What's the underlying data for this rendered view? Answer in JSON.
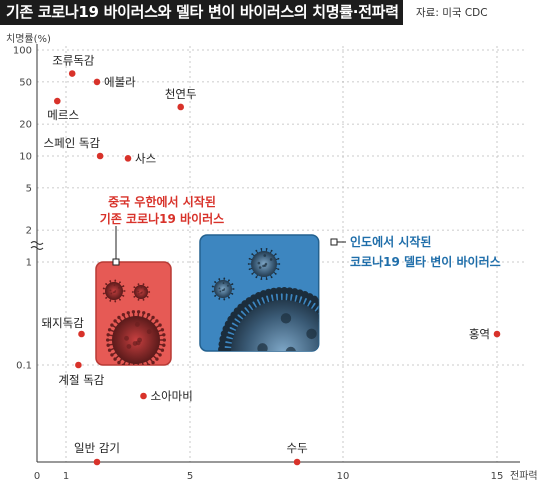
{
  "header": {
    "title": "기존 코로나19 바이러스와 델타 변이 바이러스의 치명률·전파력",
    "source": "자료: 미국 CDC"
  },
  "chart_data": {
    "type": "scatter",
    "title": "기존 코로나19 바이러스와 델타 변이 바이러스의 치명률·전파력",
    "xlabel": "전파력",
    "ylabel": "치명률(%)",
    "x_ticks": [
      "0",
      "1",
      "5",
      "10",
      "15"
    ],
    "y_ticks": [
      "100",
      "50",
      "20",
      "10",
      "5",
      "2",
      "1",
      "0.1"
    ],
    "y_scale": "log",
    "grid": true,
    "points": [
      {
        "label": "조류독감",
        "x": 1.2,
        "y": 60
      },
      {
        "label": "에볼라",
        "x": 2.0,
        "y": 50
      },
      {
        "label": "메르스",
        "x": 0.7,
        "y": 33
      },
      {
        "label": "천연두",
        "x": 4.7,
        "y": 29
      },
      {
        "label": "스페인 독감",
        "x": 2.1,
        "y": 10
      },
      {
        "label": "사스",
        "x": 3.0,
        "y": 9.5
      },
      {
        "label": "돼지독감",
        "x": 1.5,
        "y": 0.2
      },
      {
        "label": "계절 독감",
        "x": 1.4,
        "y": 0.1
      },
      {
        "label": "소아마비",
        "x": 3.5,
        "y": 0.05
      },
      {
        "label": "홍역",
        "x": 15,
        "y": 0.2
      },
      {
        "label": "일반 감기",
        "x": 2.0,
        "y": 0.01
      },
      {
        "label": "수두",
        "x": 8.5,
        "y": 0.01
      }
    ],
    "regions": [
      {
        "label": "중국 우한에서 시작된 기존 코로나19 바이러스",
        "line1": "중국 우한에서 시작된",
        "line2": "기존 코로나19 바이러스",
        "color": "#e65a55",
        "x_range": [
          2,
          4
        ],
        "y_range": [
          0.1,
          1
        ]
      },
      {
        "label": "인도에서 시작된 코로나19 델타 변이 바이러스",
        "line1": "인도에서 시작된",
        "line2": "코로나19 델타 변이 바이러스",
        "color": "#3d86c0",
        "x_range": [
          5.5,
          9.5
        ],
        "y_range": [
          0.12,
          1.5
        ]
      }
    ],
    "colors": {
      "point": "#d8322a",
      "accent_red": "#d8322a",
      "accent_blue": "#1f6eaa"
    }
  }
}
